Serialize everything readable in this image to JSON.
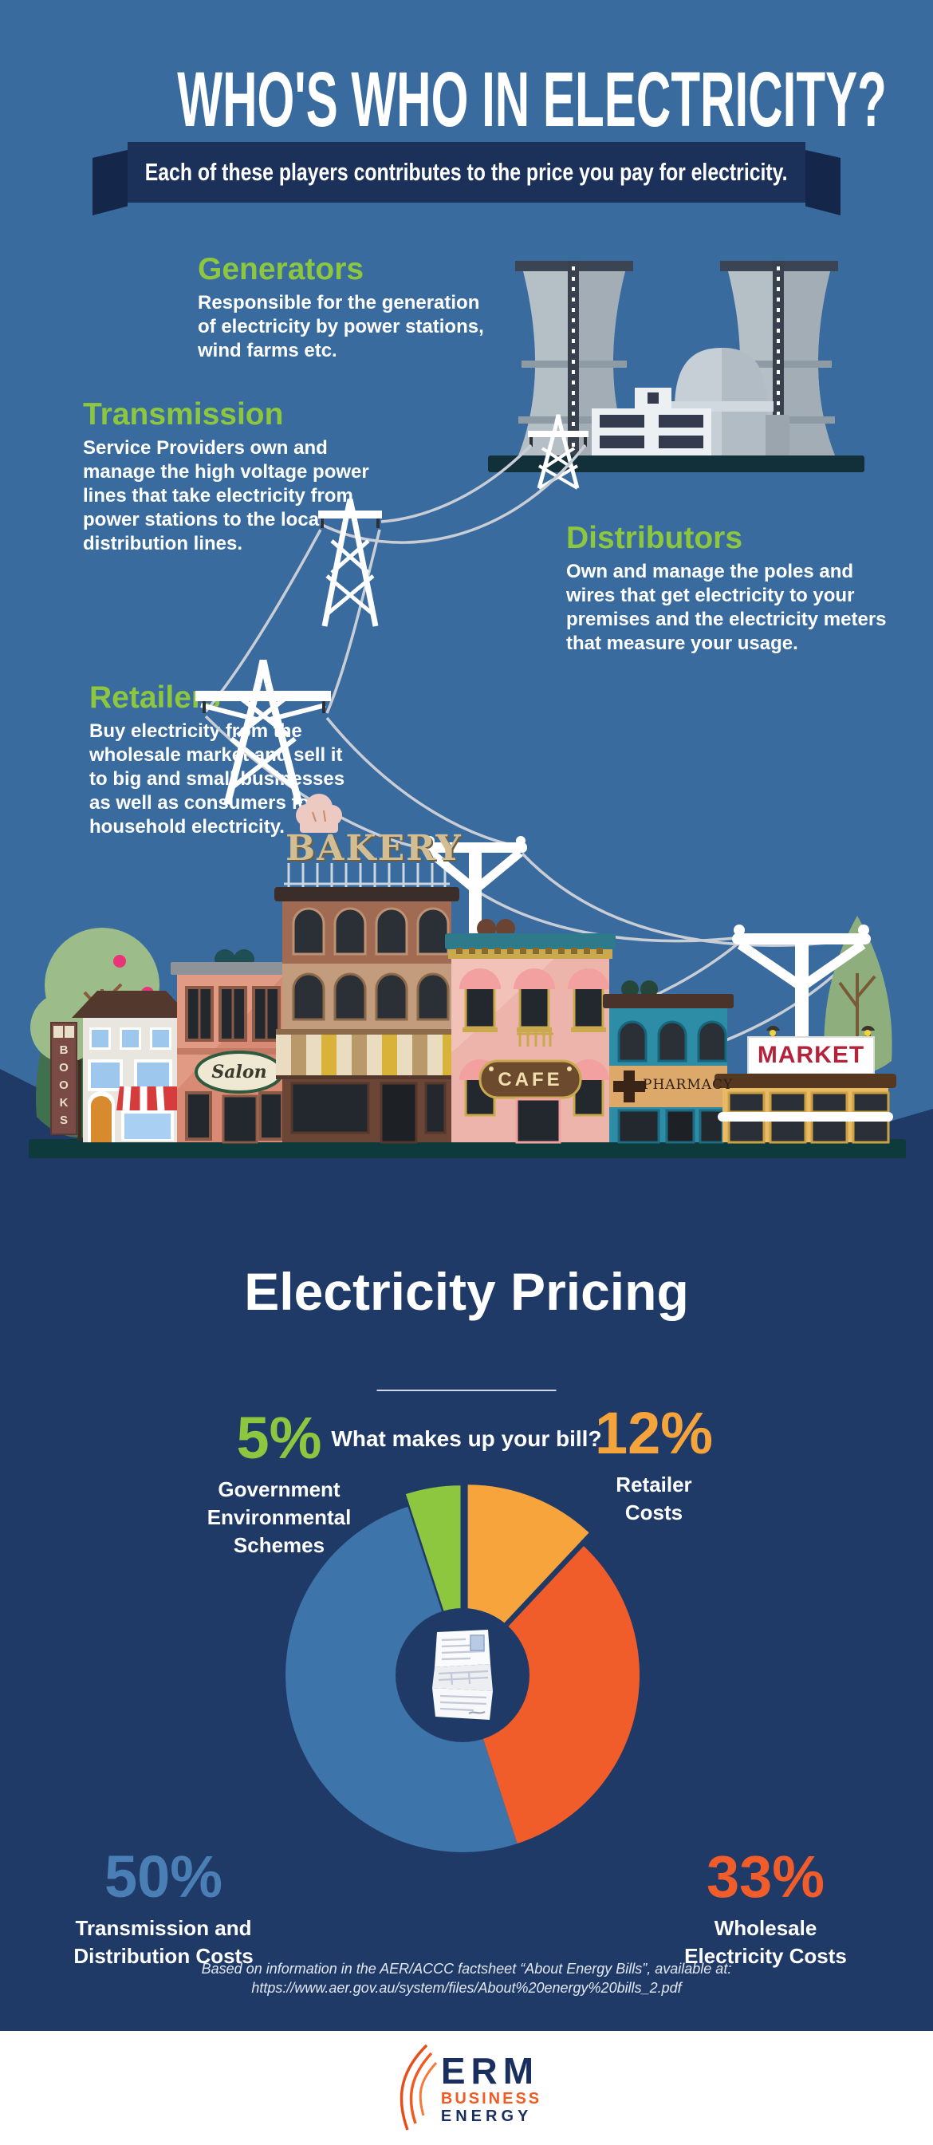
{
  "title": "WHO'S WHO IN ELECTRICITY?",
  "banner": "Each of these players contributes to the price you pay for electricity.",
  "colors": {
    "sky": "#3a6b9e",
    "navy": "#203a68",
    "ribbon": "#1c3159",
    "heading_green": "#8dc63f",
    "pie_green": "#8dc63f",
    "pie_yellow": "#f6a43b",
    "pie_orange": "#f15c2b",
    "pie_blue": "#3d74aa",
    "logo_orange": "#f15a22",
    "logo_navy": "#1b2f5e"
  },
  "sections": {
    "generators": {
      "heading": "Generators",
      "body": "Responsible for the generation\nof electricity by power stations,\nwind farms etc."
    },
    "transmission": {
      "heading": "Transmission",
      "body": "Service Providers own and\nmanage the high voltage power\nlines that take electricity from\npower stations to the local\ndistribution lines."
    },
    "distributors": {
      "heading": "Distributors",
      "body": "Own and manage the poles and\nwires that get electricity to your\npremises and the electricity meters\nthat measure your usage."
    },
    "retailers": {
      "heading": "Retailers",
      "body": "Buy electricity from the\nwholesale market and sell it\nto big and small businesses\nas well as consumers for\nhousehold electricity."
    }
  },
  "street": {
    "signs": {
      "books": "B\nO\nO\nK\nS",
      "salon": "Salon",
      "bakery": "BAKERY",
      "cafe": "CAFE",
      "pharmacy": "PHARMACY",
      "market": "MARKET"
    }
  },
  "pricing": {
    "title": "Electricity Pricing",
    "subtitle": "What makes up your bill?",
    "callouts": [
      {
        "pct": "5%",
        "label": "Government\nEnvironmental\nSchemes"
      },
      {
        "pct": "12%",
        "label": "Retailer\nCosts"
      },
      {
        "pct": "50%",
        "label": "Transmission and\nDistribution Costs"
      },
      {
        "pct": "33%",
        "label": "Wholesale\nElectricity Costs"
      }
    ]
  },
  "chart_data": {
    "type": "pie",
    "title": "Electricity Pricing",
    "subtitle": "What makes up your bill?",
    "donut": true,
    "legend_position": "around",
    "start_angle_deg": -18,
    "slices": [
      {
        "label": "Government Environmental Schemes",
        "value": 5,
        "color": "#8dc63f",
        "explode": 16
      },
      {
        "label": "Retailer Costs",
        "value": 12,
        "color": "#f6a43b",
        "explode": 18
      },
      {
        "label": "Wholesale Electricity Costs",
        "value": 33,
        "color": "#f15c2b",
        "explode": 0
      },
      {
        "label": "Transmission and Distribution Costs",
        "value": 50,
        "color": "#3d74aa",
        "explode": 0
      }
    ]
  },
  "citation": {
    "line1": "Based on information in the AER/ACCC factsheet “About Energy Bills”, available at:",
    "line2": "https://www.aer.gov.au/system/files/About%20energy%20bills_2.pdf"
  },
  "footer_logo": {
    "erm": "ERM",
    "business": "BUSINESS",
    "energy": "ENERGY"
  }
}
